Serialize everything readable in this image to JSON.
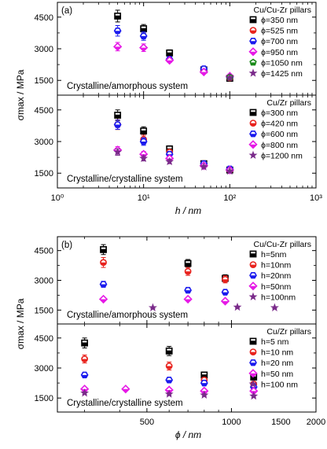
{
  "colors": {
    "black": "#000000",
    "red": "#e8231e",
    "blue": "#1a1aee",
    "magenta": "#e619e6",
    "green": "#1a8a1a",
    "purple": "#7a2a8a"
  },
  "chart_data": [
    {
      "type": "scatter",
      "panel_label": "(a)",
      "subplot": "top",
      "system_label": "Crystalline/amorphous system",
      "legend_title": "Cu/Cu-Zr pillars",
      "legend_position": "right",
      "xlabel": "h / nm",
      "ylabel": "σmax / MPa",
      "xscale": "log",
      "xlim": [
        1,
        1000
      ],
      "ylim": [
        800,
        5200
      ],
      "y_ticks": [
        1500,
        3000,
        4500
      ],
      "x_tick_labels": [
        "10⁰",
        "10¹",
        "10²",
        "10³"
      ],
      "series": [
        {
          "name": "ϕ=350 nm",
          "marker": "square",
          "color": "#000000",
          "x": [
            5,
            10,
            20,
            50,
            100
          ],
          "y": [
            4550,
            3950,
            2800,
            2000,
            1600
          ],
          "err": [
            280,
            200,
            150,
            80,
            60
          ]
        },
        {
          "name": "ϕ=525 nm",
          "marker": "circle",
          "color": "#e8231e",
          "x": [
            100
          ],
          "y": [
            1620
          ],
          "err": [
            60
          ]
        },
        {
          "name": "ϕ=700 nm",
          "marker": "hexagon",
          "color": "#1a1aee",
          "x": [
            5,
            10,
            20,
            50,
            100
          ],
          "y": [
            3850,
            3600,
            2500,
            2050,
            1650
          ],
          "err": [
            250,
            200,
            120,
            80,
            60
          ]
        },
        {
          "name": "ϕ=950 nm",
          "marker": "diamond",
          "color": "#e619e6",
          "x": [
            5,
            10,
            20,
            50,
            100
          ],
          "y": [
            3100,
            3050,
            2450,
            1900,
            1700
          ],
          "err": [
            200,
            180,
            100,
            70,
            50
          ]
        },
        {
          "name": "ϕ=1050 nm",
          "marker": "pentagon",
          "color": "#1a8a1a",
          "x": [
            100
          ],
          "y": [
            1650
          ],
          "err": [
            50
          ]
        },
        {
          "name": "ϕ=1425 nm",
          "marker": "star",
          "color": "#7a2a8a",
          "x": [
            100
          ],
          "y": [
            1630
          ],
          "err": [
            50
          ]
        }
      ]
    },
    {
      "type": "scatter",
      "subplot": "bottom",
      "system_label": "Crystalline/crystalline system",
      "legend_title": "Cu/Zr pillars",
      "legend_position": "right",
      "xlabel": "h / nm",
      "xscale": "log",
      "xlim": [
        1,
        1000
      ],
      "ylim": [
        800,
        5200
      ],
      "y_ticks": [
        1500,
        3000,
        4500
      ],
      "series": [
        {
          "name": "ϕ=300 nm",
          "marker": "square",
          "color": "#000000",
          "x": [
            5,
            10,
            20,
            50,
            100
          ],
          "y": [
            4250,
            3500,
            2650,
            1950,
            1650
          ],
          "err": [
            250,
            200,
            150,
            80,
            60
          ]
        },
        {
          "name": "ϕ=420 nm",
          "marker": "circle",
          "color": "#e8231e",
          "x": [
            5,
            10,
            20,
            50,
            100
          ],
          "y": [
            3800,
            3100,
            2500,
            1950,
            1650
          ],
          "err": [
            230,
            200,
            120,
            80,
            60
          ]
        },
        {
          "name": "ϕ=600 nm",
          "marker": "hexagon",
          "color": "#1a1aee",
          "x": [
            5,
            10,
            20,
            50,
            100
          ],
          "y": [
            3800,
            3000,
            2400,
            1950,
            1700
          ],
          "err": [
            220,
            180,
            110,
            70,
            60
          ]
        },
        {
          "name": "ϕ=800 nm",
          "marker": "diamond",
          "color": "#e619e6",
          "x": [
            5,
            10,
            20,
            50,
            100
          ],
          "y": [
            2600,
            2400,
            2200,
            1850,
            1650
          ],
          "err": [
            160,
            130,
            110,
            70,
            50
          ]
        },
        {
          "name": "ϕ=1200 nm",
          "marker": "star",
          "color": "#7a2a8a",
          "x": [
            5,
            10,
            20,
            50,
            100
          ],
          "y": [
            2500,
            2200,
            2050,
            1800,
            1600
          ],
          "err": [
            150,
            120,
            100,
            70,
            50
          ]
        }
      ]
    },
    {
      "type": "scatter",
      "panel_label": "(b)",
      "subplot": "top",
      "system_label": "Crystalline/amorphous system",
      "legend_title": "Cu/Cu-Zr pillars",
      "legend_position": "right",
      "xlabel": "ϕ / nm",
      "ylabel": "σmax / MPa",
      "xscale": "log",
      "xlim": [
        240,
        2000
      ],
      "ylim": [
        800,
        5200
      ],
      "y_ticks": [
        1500,
        3000,
        4500
      ],
      "x_tick_labels": [
        "500",
        "1000",
        "1500",
        "2000"
      ],
      "series": [
        {
          "name": "h=5nm",
          "marker": "square",
          "color": "#000000",
          "x": [
            350,
            700,
            950
          ],
          "y": [
            4550,
            3850,
            3100
          ],
          "err": [
            250,
            200,
            180
          ]
        },
        {
          "name": "h=10nm",
          "marker": "circle",
          "color": "#e8231e",
          "x": [
            350,
            700,
            950
          ],
          "y": [
            3900,
            3450,
            3050
          ],
          "err": [
            250,
            200,
            180
          ]
        },
        {
          "name": "h=20nm",
          "marker": "hexagon",
          "color": "#1a1aee",
          "x": [
            350,
            700,
            950
          ],
          "y": [
            2800,
            2500,
            2400
          ],
          "err": [
            150,
            130,
            110
          ]
        },
        {
          "name": "h=50nm",
          "marker": "diamond",
          "color": "#e619e6",
          "x": [
            350,
            700,
            950
          ],
          "y": [
            2050,
            2050,
            1950
          ],
          "err": [
            80,
            80,
            70
          ]
        },
        {
          "name": "h=100nm",
          "marker": "star",
          "color": "#7a2a8a",
          "x": [
            525,
            1050,
            1425
          ],
          "y": [
            1620,
            1650,
            1620
          ],
          "err": [
            50,
            50,
            50
          ]
        }
      ]
    },
    {
      "type": "scatter",
      "subplot": "bottom",
      "system_label": "Crystalline/crystalline system",
      "legend_title": "Cu/Zr pillars",
      "legend_position": "right",
      "xlabel": "ϕ / nm",
      "xscale": "log",
      "xlim": [
        240,
        2000
      ],
      "ylim": [
        800,
        5200
      ],
      "y_ticks": [
        1500,
        3000,
        4500
      ],
      "series": [
        {
          "name": "h=5 nm",
          "marker": "square",
          "color": "#000000",
          "x": [
            300,
            600,
            800,
            1200
          ],
          "y": [
            4250,
            3850,
            2650,
            2550
          ],
          "err": [
            250,
            230,
            150,
            150
          ]
        },
        {
          "name": "h=10 nm",
          "marker": "circle",
          "color": "#e8231e",
          "x": [
            300,
            600,
            800,
            1200
          ],
          "y": [
            3450,
            3100,
            2400,
            2200
          ],
          "err": [
            200,
            200,
            130,
            120
          ]
        },
        {
          "name": "h=20 nm",
          "marker": "hexagon",
          "color": "#1a1aee",
          "x": [
            300,
            600,
            800,
            1200
          ],
          "y": [
            2650,
            2400,
            2250,
            2050
          ],
          "err": [
            120,
            110,
            100,
            90
          ]
        },
        {
          "name": "h=50 nm",
          "marker": "diamond",
          "color": "#e619e6",
          "x": [
            300,
            420,
            600,
            800,
            1200
          ],
          "y": [
            1950,
            1950,
            1900,
            1850,
            1850
          ],
          "err": [
            80,
            70,
            70,
            70,
            70
          ]
        },
        {
          "name": "h=100 nm",
          "marker": "star",
          "color": "#7a2a8a",
          "x": [
            300,
            600,
            800,
            1200
          ],
          "y": [
            1750,
            1700,
            1650,
            1600
          ],
          "err": [
            60,
            60,
            60,
            60
          ]
        }
      ]
    }
  ]
}
